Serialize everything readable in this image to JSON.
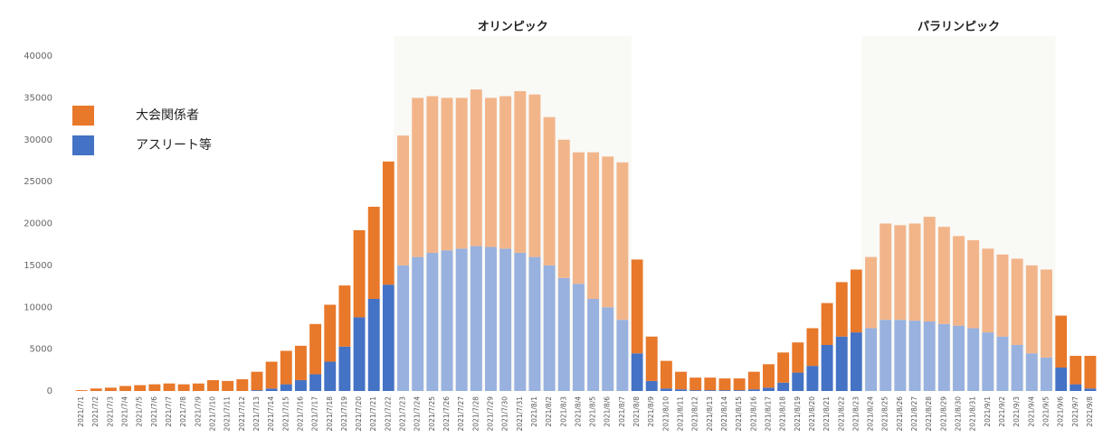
{
  "chart_data": {
    "type": "stacked_bar",
    "categories": [
      "2021/7/1",
      "2021/7/2",
      "2021/7/3",
      "2021/7/4",
      "2021/7/5",
      "2021/7/6",
      "2021/7/7",
      "2021/7/8",
      "2021/7/9",
      "2021/7/10",
      "2021/7/11",
      "2021/7/12",
      "2021/7/13",
      "2021/7/14",
      "2021/7/15",
      "2021/7/16",
      "2021/7/17",
      "2021/7/18",
      "2021/7/19",
      "2021/7/20",
      "2021/7/21",
      "2021/7/22",
      "2021/7/23",
      "2021/7/24",
      "2021/7/25",
      "2021/7/26",
      "2021/7/27",
      "2021/7/28",
      "2021/7/29",
      "2021/7/30",
      "2021/7/31",
      "2021/8/1",
      "2021/8/2",
      "2021/8/3",
      "2021/8/4",
      "2021/8/5",
      "2021/8/6",
      "2021/8/7",
      "2021/8/8",
      "2021/8/9",
      "2021/8/10",
      "2021/8/11",
      "2021/8/12",
      "2021/8/13",
      "2021/8/14",
      "2021/8/15",
      "2021/8/16",
      "2021/8/17",
      "2021/8/18",
      "2021/8/19",
      "2021/8/20",
      "2021/8/21",
      "2021/8/22",
      "2021/8/23",
      "2021/8/24",
      "2021/8/25",
      "2021/8/26",
      "2021/8/27",
      "2021/8/28",
      "2021/8/29",
      "2021/8/30",
      "2021/8/31",
      "2021/9/1",
      "2021/9/2",
      "2021/9/3",
      "2021/9/4",
      "2021/9/5",
      "2021/9/6",
      "2021/9/7",
      "2021/9/8"
    ],
    "series": [
      {
        "name": "アスリート等",
        "color": "#4472c4",
        "values": [
          0,
          0,
          0,
          0,
          0,
          0,
          0,
          0,
          0,
          0,
          0,
          0,
          100,
          300,
          800,
          1300,
          2000,
          3500,
          5300,
          8800,
          11000,
          12700,
          15000,
          16000,
          16500,
          16800,
          17000,
          17300,
          17200,
          17000,
          16500,
          16000,
          15000,
          13500,
          12800,
          11000,
          10000,
          8500,
          4500,
          1200,
          300,
          200,
          100,
          100,
          100,
          100,
          200,
          400,
          1000,
          2200,
          3000,
          5500,
          6500,
          7000,
          7500,
          8500,
          8500,
          8400,
          8300,
          8000,
          7800,
          7500,
          7000,
          6500,
          5500,
          4500,
          4000,
          2800,
          800,
          300
        ]
      },
      {
        "name": "大会関係者",
        "color": "#e8782a",
        "values": [
          100,
          300,
          400,
          600,
          700,
          800,
          900,
          800,
          900,
          1300,
          1200,
          1400,
          2200,
          3200,
          4000,
          4100,
          6000,
          6800,
          7300,
          10400,
          11000,
          14700,
          15500,
          19000,
          18700,
          18200,
          18000,
          18700,
          17800,
          18200,
          19300,
          19400,
          17700,
          16500,
          15700,
          17500,
          18000,
          18800,
          11200,
          5300,
          3300,
          2100,
          1500,
          1500,
          1400,
          1400,
          2100,
          2800,
          3600,
          3600,
          4500,
          5000,
          6500,
          7500,
          8500,
          11500,
          11300,
          11600,
          12500,
          11600,
          10700,
          10500,
          10000,
          9800,
          10300,
          10500,
          10500,
          6200,
          3400,
          3900
        ]
      }
    ],
    "highlights": [
      {
        "label": "オリンピック",
        "from": "2021/7/23",
        "to": "2021/8/7"
      },
      {
        "label": "パラリンピック",
        "from": "2021/8/24",
        "to": "2021/9/5"
      }
    ],
    "ylim": [
      0,
      40000
    ],
    "yticks": [
      0,
      5000,
      10000,
      15000,
      20000,
      25000,
      30000,
      35000,
      40000
    ],
    "grid": false
  }
}
